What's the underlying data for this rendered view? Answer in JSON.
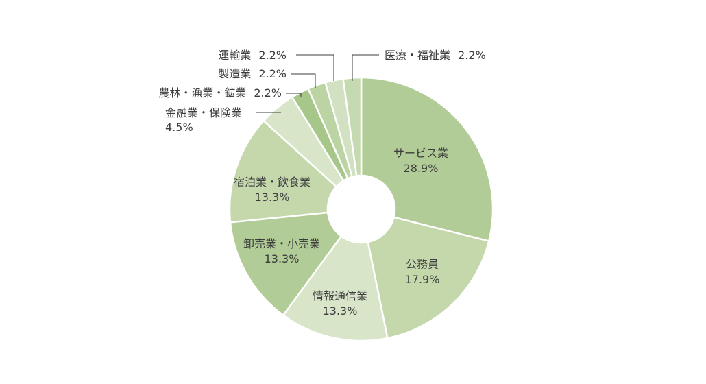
{
  "chart_data": {
    "type": "pie",
    "donut": true,
    "start_angle_deg": 0,
    "direction": "clockwise",
    "slices": [
      {
        "name": "サービス業",
        "value": 28.9,
        "label": "28.9%",
        "color": "#b2cc97"
      },
      {
        "name": "公務員",
        "value": 17.9,
        "label": "17.9%",
        "color": "#c4d8ac"
      },
      {
        "name": "情報通信業",
        "value": 13.3,
        "label": "13.3%",
        "color": "#d8e5c9"
      },
      {
        "name": "卸売業・小売業",
        "value": 13.3,
        "label": "13.3%",
        "color": "#b2cc97"
      },
      {
        "name": "宿泊業・飲食業",
        "value": 13.3,
        "label": "13.3%",
        "color": "#c4d8ac"
      },
      {
        "name": "金融業・保険業",
        "value": 4.5,
        "label": "4.5%",
        "color": "#d8e5c9"
      },
      {
        "name": "農林・漁業・鉱業",
        "value": 2.2,
        "label": "2.2%",
        "color": "#a6c68a"
      },
      {
        "name": "製造業",
        "value": 2.2,
        "label": "2.2%",
        "color": "#bcd4a3"
      },
      {
        "name": "運輸業",
        "value": 2.2,
        "label": "2.2%",
        "color": "#d2e1c1"
      },
      {
        "name": "医療・福祉業",
        "value": 2.2,
        "label": "2.2%",
        "color": "#c6dab1"
      }
    ]
  }
}
